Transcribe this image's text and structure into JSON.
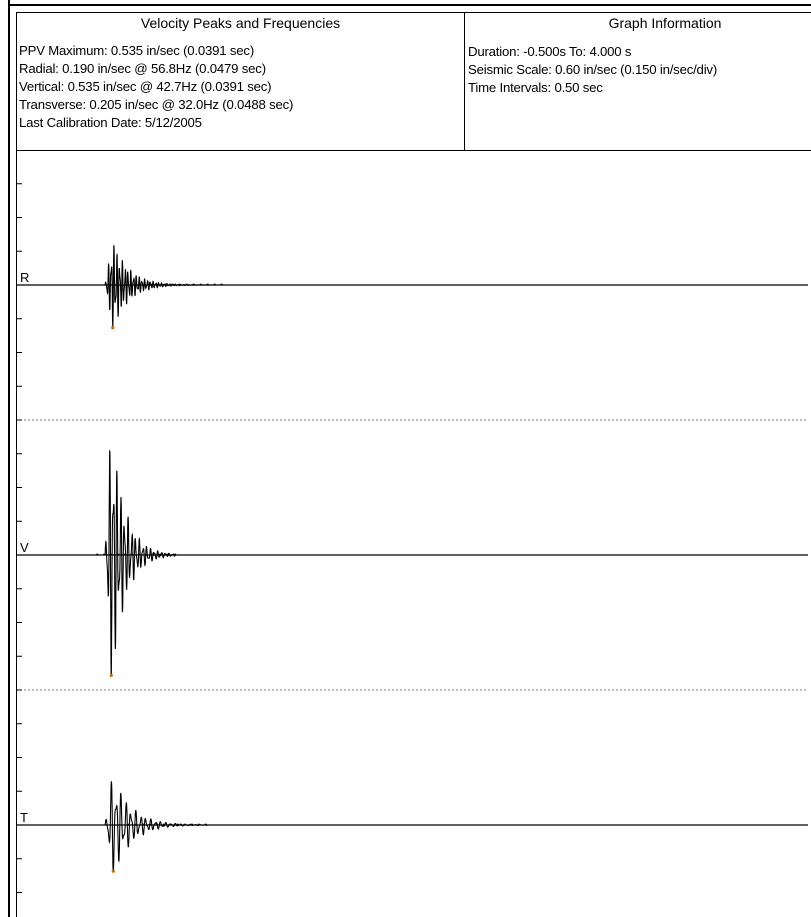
{
  "report": {
    "peaks_title": "Velocity Peaks and Frequencies",
    "peaks_lines": [
      "PPV Maximum: 0.535 in/sec (0.0391 sec)",
      "Radial: 0.190 in/sec @ 56.8Hz (0.0479 sec)",
      "Vertical: 0.535 in/sec @ 42.7Hz (0.0391 sec)",
      "Transverse: 0.205 in/sec @ 32.0Hz (0.0488 sec)",
      "Last Calibration Date: 5/12/2005"
    ],
    "info_title": "Graph Information",
    "info_lines": [
      "Duration: -0.500s To: 4.000 s",
      "Seismic Scale: 0.60 in/sec (0.150 in/sec/div)",
      "Time Intervals: 0.50 sec"
    ]
  },
  "chart_data": {
    "type": "line",
    "title": "",
    "x_range_sec": [
      -0.5,
      4.0
    ],
    "y_range_in_per_sec": [
      -0.6,
      0.6
    ],
    "y_division_in_per_sec": 0.15,
    "grid": false,
    "series": [
      {
        "name": "R",
        "peak_in_per_sec": 0.19,
        "peak_freq_hz": 56.8,
        "peak_time_sec": 0.0479,
        "decay": 10.0,
        "tail_sec": 0.75
      },
      {
        "name": "V",
        "peak_in_per_sec": 0.535,
        "peak_freq_hz": 42.7,
        "peak_time_sec": 0.0391,
        "decay": 12.0,
        "tail_sec": 0.45
      },
      {
        "name": "T",
        "peak_in_per_sec": 0.205,
        "peak_freq_hz": 32.0,
        "peak_time_sec": 0.0488,
        "decay": 9.0,
        "tail_sec": 0.65
      }
    ],
    "colors": {
      "trace": "#000000",
      "separator": "#808080"
    }
  }
}
